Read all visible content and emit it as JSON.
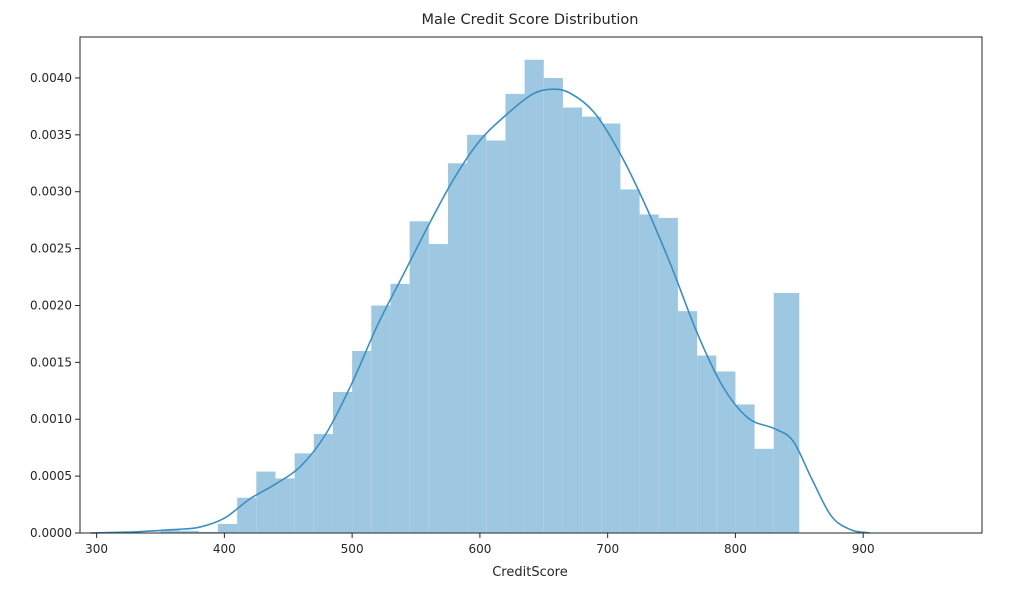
{
  "chart_data": {
    "type": "bar",
    "title": "Male Credit Score Distribution",
    "xlabel": "CreditScore",
    "ylabel": "",
    "xlim": [
      287,
      993
    ],
    "ylim": [
      0,
      0.00436
    ],
    "xticks": [
      300,
      400,
      500,
      600,
      700,
      800,
      900
    ],
    "xtick_labels": [
      "300",
      "400",
      "500",
      "600",
      "700",
      "800",
      "900"
    ],
    "yticks": [
      0.0,
      0.0005,
      0.001,
      0.0015,
      0.002,
      0.0025,
      0.003,
      0.0035,
      0.004
    ],
    "ytick_labels": [
      "0.0000",
      "0.0005",
      "0.0010",
      "0.0015",
      "0.0020",
      "0.0025",
      "0.0030",
      "0.0035",
      "0.0040"
    ],
    "grid": false,
    "colors": {
      "bars": "#9ec8e2",
      "kde_line": "#3a8fc0",
      "axes": "#262626"
    },
    "histogram": {
      "bin_edges": [
        350,
        365,
        380,
        395,
        410,
        425,
        440,
        455,
        470,
        485,
        500,
        515,
        530,
        545,
        560,
        575,
        590,
        605,
        620,
        635,
        650,
        665,
        680,
        695,
        710,
        725,
        740,
        755,
        770,
        785,
        800,
        815,
        830,
        850
      ],
      "densities": [
        3e-05,
        2e-05,
        1e-05,
        8e-05,
        0.00031,
        0.00054,
        0.00048,
        0.0007,
        0.00087,
        0.00124,
        0.0016,
        0.002,
        0.00219,
        0.00274,
        0.00254,
        0.00325,
        0.0035,
        0.00345,
        0.00386,
        0.00416,
        0.004,
        0.00374,
        0.00366,
        0.0036,
        0.00302,
        0.0028,
        0.00277,
        0.00195,
        0.00156,
        0.00142,
        0.00113,
        0.00074,
        0.00211
      ]
    },
    "kde": {
      "x": [
        295,
        330,
        360,
        380,
        400,
        420,
        440,
        460,
        480,
        500,
        520,
        540,
        560,
        580,
        600,
        620,
        640,
        655,
        670,
        690,
        710,
        730,
        750,
        770,
        790,
        810,
        830,
        845,
        860,
        875,
        890,
        905
      ],
      "y": [
        0.0,
        1e-05,
        3e-05,
        5e-05,
        0.00013,
        0.0003,
        0.00043,
        0.00059,
        0.00088,
        0.00132,
        0.00183,
        0.00227,
        0.00271,
        0.00312,
        0.00345,
        0.00367,
        0.00385,
        0.0039,
        0.00387,
        0.00369,
        0.00333,
        0.00287,
        0.00234,
        0.00176,
        0.00129,
        0.00101,
        0.00092,
        0.00081,
        0.00047,
        0.00015,
        3e-05,
        0.0
      ]
    }
  }
}
